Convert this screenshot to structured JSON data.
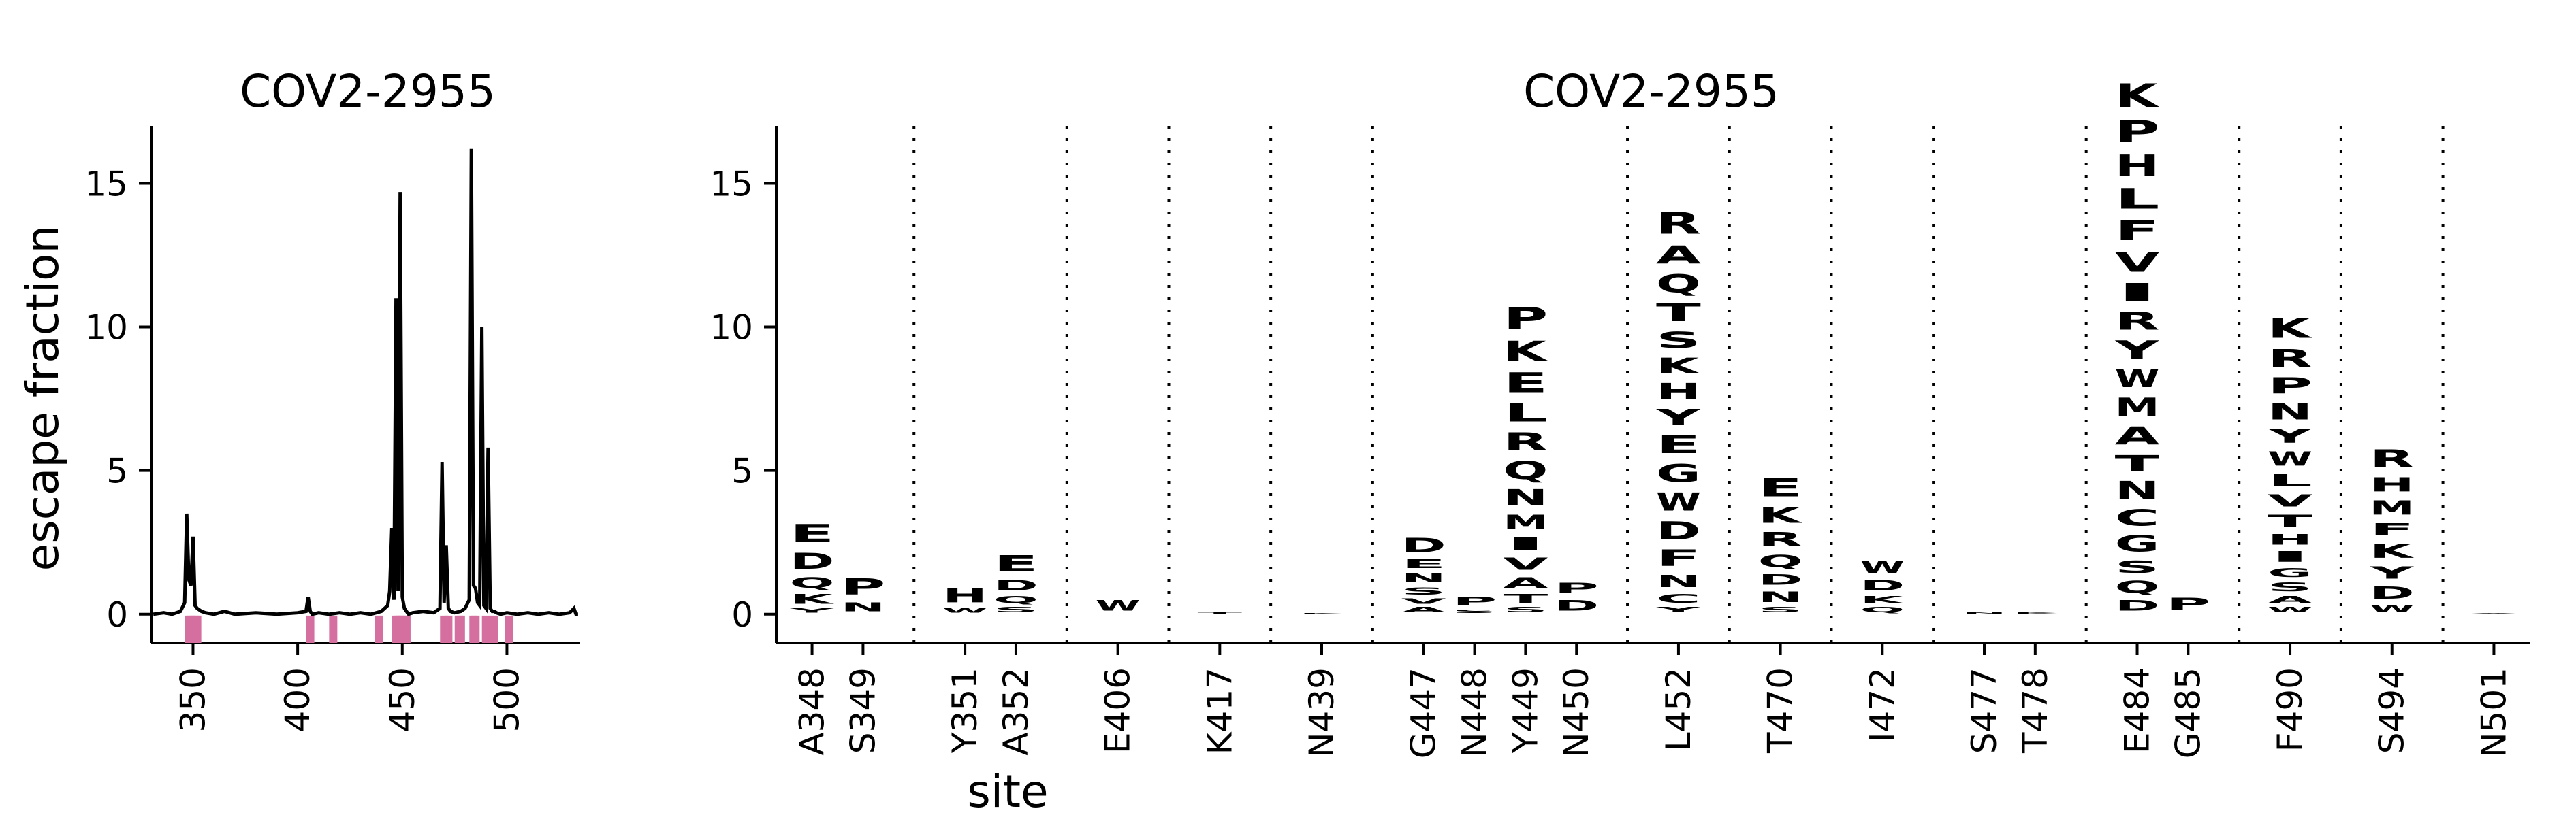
{
  "chart_data": [
    {
      "type": "line",
      "title": "COV2-2955",
      "ylabel": "escape fraction",
      "xlim": [
        330,
        535
      ],
      "ylim": [
        -1,
        17
      ],
      "xticks": [
        350,
        400,
        450,
        500
      ],
      "yticks": [
        0,
        5,
        10,
        15
      ],
      "grid": false,
      "series": [
        {
          "x": [
            331,
            336,
            340,
            344,
            346,
            347,
            348,
            349,
            350,
            351,
            352,
            354,
            356,
            360,
            365,
            370,
            380,
            390,
            400,
            404,
            405,
            406,
            407,
            410,
            415,
            420,
            425,
            430,
            435,
            440,
            443,
            444,
            445,
            446,
            447,
            448,
            449,
            450,
            451,
            452,
            453,
            455,
            460,
            465,
            468,
            469,
            470,
            471,
            472,
            473,
            475,
            478,
            480,
            482,
            483,
            484,
            485,
            486,
            487,
            488,
            489,
            490,
            491,
            492,
            493,
            494,
            495,
            497,
            500,
            505,
            510,
            515,
            520,
            525,
            530,
            532,
            533,
            534
          ],
          "y": [
            0.0,
            0.05,
            0.0,
            0.1,
            0.4,
            3.5,
            1.2,
            1.0,
            2.7,
            0.3,
            0.2,
            0.1,
            0.05,
            0.0,
            0.1,
            0.0,
            0.05,
            0.0,
            0.05,
            0.1,
            0.6,
            0.1,
            0.0,
            0.05,
            0.0,
            0.05,
            0.0,
            0.05,
            0.0,
            0.1,
            0.3,
            0.8,
            3.0,
            0.5,
            11.0,
            0.8,
            14.7,
            0.6,
            0.2,
            0.1,
            0.0,
            0.05,
            0.1,
            0.05,
            0.2,
            5.3,
            0.4,
            2.4,
            0.2,
            0.1,
            0.05,
            0.1,
            0.2,
            0.5,
            16.2,
            1.0,
            0.9,
            0.4,
            0.3,
            10.0,
            0.3,
            0.2,
            5.8,
            0.2,
            0.1,
            0.1,
            0.05,
            0.0,
            0.05,
            0.0,
            0.05,
            0.0,
            0.05,
            0.0,
            0.05,
            0.2,
            0.0,
            0.0
          ]
        }
      ],
      "marker_sites": [
        348,
        349,
        351,
        352,
        406,
        417,
        439,
        447,
        448,
        449,
        450,
        452,
        470,
        472,
        477,
        478,
        484,
        485,
        490,
        494,
        501
      ],
      "marker_color": "#d46fa0"
    },
    {
      "type": "logo",
      "title": "COV2-2955",
      "xlabel": "site",
      "ylim": [
        -1,
        17
      ],
      "yticks": [
        0,
        5,
        10,
        15
      ],
      "grid": false,
      "palette": {
        "dark": "#6b2a08",
        "mid": "#c2500d",
        "orange": "#ee8a22",
        "light": "#f7c15a",
        "pale": "#fce3a5"
      },
      "groups": [
        {
          "sites": [
            {
              "label": "A348",
              "stack": [
                [
                  "Y",
                  0.25,
                  "light"
                ],
                [
                  "K",
                  0.55,
                  "light"
                ],
                [
                  "Q",
                  0.6,
                  "orange"
                ],
                [
                  "D",
                  0.9,
                  "mid"
                ],
                [
                  "E",
                  1.0,
                  "orange"
                ]
              ]
            },
            {
              "label": "S349",
              "stack": [
                [
                  "N",
                  0.5,
                  "mid"
                ],
                [
                  "P",
                  0.9,
                  "mid"
                ]
              ]
            }
          ]
        },
        {
          "sites": [
            {
              "label": "Y351",
              "stack": [
                [
                  "W",
                  0.25,
                  "pale"
                ],
                [
                  "H",
                  0.8,
                  "orange"
                ]
              ]
            },
            {
              "label": "A352",
              "stack": [
                [
                  "S",
                  0.3,
                  "pale"
                ],
                [
                  "Q",
                  0.4,
                  "light"
                ],
                [
                  "D",
                  0.6,
                  "mid"
                ],
                [
                  "E",
                  0.9,
                  "mid"
                ]
              ]
            }
          ]
        },
        {
          "sites": [
            {
              "label": "E406",
              "stack": [
                [
                  "W",
                  0.6,
                  "mid"
                ]
              ]
            }
          ]
        },
        {
          "sites": [
            {
              "label": "K417",
              "stack": [
                [
                  "T",
                  0.08,
                  "pale"
                ]
              ]
            }
          ]
        },
        {
          "sites": [
            {
              "label": "N439",
              "stack": [
                [
                  "K",
                  0.05,
                  "pale"
                ]
              ]
            }
          ]
        },
        {
          "sites": [
            {
              "label": "G447",
              "stack": [
                [
                  "A",
                  0.3,
                  "pale"
                ],
                [
                  "V",
                  0.3,
                  "light"
                ],
                [
                  "S",
                  0.4,
                  "orange"
                ],
                [
                  "N",
                  0.5,
                  "orange"
                ],
                [
                  "E",
                  0.5,
                  "mid"
                ],
                [
                  "D",
                  0.8,
                  "mid"
                ]
              ]
            },
            {
              "label": "N448",
              "stack": [
                [
                  "S",
                  0.2,
                  "pale"
                ],
                [
                  "P",
                  0.5,
                  "orange"
                ]
              ]
            },
            {
              "label": "Y449",
              "stack": [
                [
                  "S",
                  0.3,
                  "pale"
                ],
                [
                  "T",
                  0.5,
                  "dark"
                ],
                [
                  "A",
                  0.6,
                  "dark"
                ],
                [
                  "V",
                  0.7,
                  "dark"
                ],
                [
                  "I",
                  0.7,
                  "mid"
                ],
                [
                  "M",
                  0.8,
                  "dark"
                ],
                [
                  "N",
                  0.9,
                  "dark"
                ],
                [
                  "Q",
                  1.0,
                  "dark"
                ],
                [
                  "R",
                  1.0,
                  "dark"
                ],
                [
                  "L",
                  1.0,
                  "orange"
                ],
                [
                  "E",
                  1.1,
                  "mid"
                ],
                [
                  "K",
                  1.1,
                  "dark"
                ],
                [
                  "P",
                  1.2,
                  "dark"
                ]
              ]
            },
            {
              "label": "N450",
              "stack": [
                [
                  "D",
                  0.6,
                  "dark"
                ],
                [
                  "P",
                  0.6,
                  "dark"
                ]
              ]
            }
          ]
        },
        {
          "sites": [
            {
              "label": "L452",
              "stack": [
                [
                  "Y",
                  0.3,
                  "light"
                ],
                [
                  "C",
                  0.5,
                  "mid"
                ],
                [
                  "N",
                  0.7,
                  "dark"
                ],
                [
                  "F",
                  0.9,
                  "mid"
                ],
                [
                  "D",
                  1.0,
                  "orange"
                ],
                [
                  "W",
                  1.0,
                  "dark"
                ],
                [
                  "G",
                  1.0,
                  "dark"
                ],
                [
                  "E",
                  1.0,
                  "dark"
                ],
                [
                  "Y",
                  0.9,
                  "dark"
                ],
                [
                  "H",
                  0.9,
                  "dark"
                ],
                [
                  "K",
                  0.9,
                  "dark"
                ],
                [
                  "S",
                  0.9,
                  "dark"
                ],
                [
                  "T",
                  1.0,
                  "dark"
                ],
                [
                  "Q",
                  1.0,
                  "dark"
                ],
                [
                  "A",
                  1.0,
                  "dark"
                ],
                [
                  "R",
                  1.2,
                  "dark"
                ]
              ]
            }
          ]
        },
        {
          "sites": [
            {
              "label": "T470",
              "stack": [
                [
                  "S",
                  0.3,
                  "orange"
                ],
                [
                  "N",
                  0.6,
                  "mid"
                ],
                [
                  "D",
                  0.6,
                  "mid"
                ],
                [
                  "Q",
                  0.7,
                  "mid"
                ],
                [
                  "R",
                  0.8,
                  "mid"
                ],
                [
                  "K",
                  0.9,
                  "mid"
                ],
                [
                  "E",
                  1.0,
                  "mid"
                ]
              ]
            }
          ]
        },
        {
          "sites": [
            {
              "label": "I472",
              "stack": [
                [
                  "Q",
                  0.3,
                  "pale"
                ],
                [
                  "K",
                  0.4,
                  "light"
                ],
                [
                  "D",
                  0.6,
                  "pale"
                ],
                [
                  "W",
                  0.7,
                  "light"
                ]
              ]
            }
          ]
        },
        {
          "sites": [
            {
              "label": "S477",
              "stack": [
                [
                  "N",
                  0.08,
                  "pale"
                ]
              ]
            },
            {
              "label": "T478",
              "stack": [
                [
                  "K",
                  0.08,
                  "pale"
                ]
              ]
            }
          ]
        },
        {
          "sites": [
            {
              "label": "E484",
              "stack": [
                [
                  "D",
                  0.6,
                  "dark"
                ],
                [
                  "Q",
                  0.7,
                  "mid"
                ],
                [
                  "S",
                  0.7,
                  "mid"
                ],
                [
                  "G",
                  0.9,
                  "orange"
                ],
                [
                  "C",
                  0.9,
                  "orange"
                ],
                [
                  "N",
                  1.0,
                  "dark"
                ],
                [
                  "T",
                  0.9,
                  "mid"
                ],
                [
                  "A",
                  1.0,
                  "mid"
                ],
                [
                  "M",
                  1.0,
                  "mid"
                ],
                [
                  "W",
                  1.0,
                  "light"
                ],
                [
                  "Y",
                  1.0,
                  "orange"
                ],
                [
                  "R",
                  1.0,
                  "mid"
                ],
                [
                  "I",
                  1.0,
                  "dark"
                ],
                [
                  "V",
                  1.1,
                  "dark"
                ],
                [
                  "F",
                  1.1,
                  "orange"
                ],
                [
                  "L",
                  1.1,
                  "mid"
                ],
                [
                  "H",
                  1.2,
                  "mid"
                ],
                [
                  "P",
                  1.2,
                  "mid"
                ],
                [
                  "K",
                  1.3,
                  "dark"
                ]
              ]
            },
            {
              "label": "G485",
              "stack": [
                [
                  "P",
                  0.7,
                  "orange"
                ]
              ]
            }
          ]
        },
        {
          "sites": [
            {
              "label": "F490",
              "stack": [
                [
                  "W",
                  0.3,
                  "pale"
                ],
                [
                  "A",
                  0.4,
                  "mid"
                ],
                [
                  "S",
                  0.5,
                  "mid"
                ],
                [
                  "G",
                  0.5,
                  "dark"
                ],
                [
                  "I",
                  0.6,
                  "dark"
                ],
                [
                  "H",
                  0.6,
                  "mid"
                ],
                [
                  "T",
                  0.7,
                  "dark"
                ],
                [
                  "V",
                  0.7,
                  "mid"
                ],
                [
                  "L",
                  0.7,
                  "dark"
                ],
                [
                  "W",
                  0.8,
                  "dark"
                ],
                [
                  "Y",
                  0.8,
                  "dark"
                ],
                [
                  "N",
                  0.9,
                  "dark"
                ],
                [
                  "P",
                  0.9,
                  "dark"
                ],
                [
                  "R",
                  1.0,
                  "dark"
                ],
                [
                  "K",
                  1.1,
                  "dark"
                ]
              ]
            }
          ]
        },
        {
          "sites": [
            {
              "label": "S494",
              "stack": [
                [
                  "W",
                  0.4,
                  "light"
                ],
                [
                  "D",
                  0.7,
                  "light"
                ],
                [
                  "Y",
                  0.7,
                  "orange"
                ],
                [
                  "K",
                  0.8,
                  "dark"
                ],
                [
                  "F",
                  0.7,
                  "light"
                ],
                [
                  "M",
                  0.8,
                  "orange"
                ],
                [
                  "H",
                  0.8,
                  "mid"
                ],
                [
                  "R",
                  1.0,
                  "dark"
                ]
              ]
            }
          ]
        },
        {
          "sites": [
            {
              "label": "N501",
              "stack": [
                [
                  "Y",
                  0.05,
                  "pale"
                ]
              ]
            }
          ]
        }
      ]
    }
  ]
}
